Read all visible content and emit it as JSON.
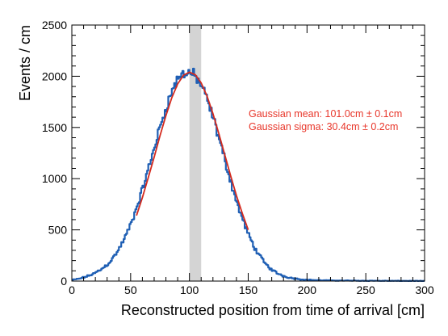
{
  "chart_data": {
    "type": "line",
    "title": "",
    "xlabel": "Reconstructed position from time of arrival [cm]",
    "ylabel": "Events / cm",
    "xlim": [
      0,
      300
    ],
    "ylim": [
      0,
      2500
    ],
    "x_ticks": [
      "0",
      "50",
      "100",
      "150",
      "200",
      "250",
      "300"
    ],
    "y_ticks": [
      "0",
      "500",
      "1000",
      "1500",
      "2000",
      "2500"
    ],
    "grid": false,
    "series": [
      {
        "kind": "histogram",
        "color": "#1f5fb4",
        "x": [
          0,
          5,
          10,
          15,
          20,
          25,
          30,
          35,
          40,
          45,
          50,
          55,
          60,
          65,
          70,
          75,
          80,
          85,
          90,
          95,
          100,
          105,
          110,
          115,
          120,
          125,
          130,
          135,
          140,
          145,
          150,
          155,
          160,
          165,
          170,
          175,
          180,
          185,
          190,
          195,
          200,
          210,
          220,
          230,
          240,
          250,
          260,
          270,
          280,
          290,
          300
        ],
        "values": [
          10,
          20,
          35,
          55,
          80,
          115,
          160,
          225,
          310,
          420,
          550,
          710,
          890,
          1090,
          1300,
          1500,
          1690,
          1850,
          1970,
          2030,
          2040,
          2000,
          1910,
          1770,
          1600,
          1400,
          1190,
          980,
          780,
          610,
          460,
          335,
          240,
          165,
          110,
          75,
          50,
          34,
          24,
          17,
          12,
          8,
          6,
          5,
          4,
          3,
          3,
          2,
          2,
          2,
          1
        ]
      },
      {
        "kind": "gaussian_fit",
        "color": "#d42a1e",
        "x": [
          55,
          60,
          65,
          70,
          75,
          80,
          85,
          90,
          95,
          100,
          105,
          110,
          115,
          120,
          125,
          130,
          135,
          140,
          145,
          150
        ],
        "values": [
          640,
          815,
          1010,
          1210,
          1420,
          1615,
          1790,
          1925,
          2010,
          2040,
          2015,
          1935,
          1805,
          1635,
          1440,
          1235,
          1030,
          835,
          660,
          500
        ]
      }
    ],
    "highlight_band": {
      "x": [
        100,
        110
      ],
      "color": "#d4d4d4"
    },
    "annotations": [
      "Gaussian mean: 101.0cm ± 0.1cm",
      "Gaussian sigma: 30.4cm ± 0.2cm"
    ]
  }
}
